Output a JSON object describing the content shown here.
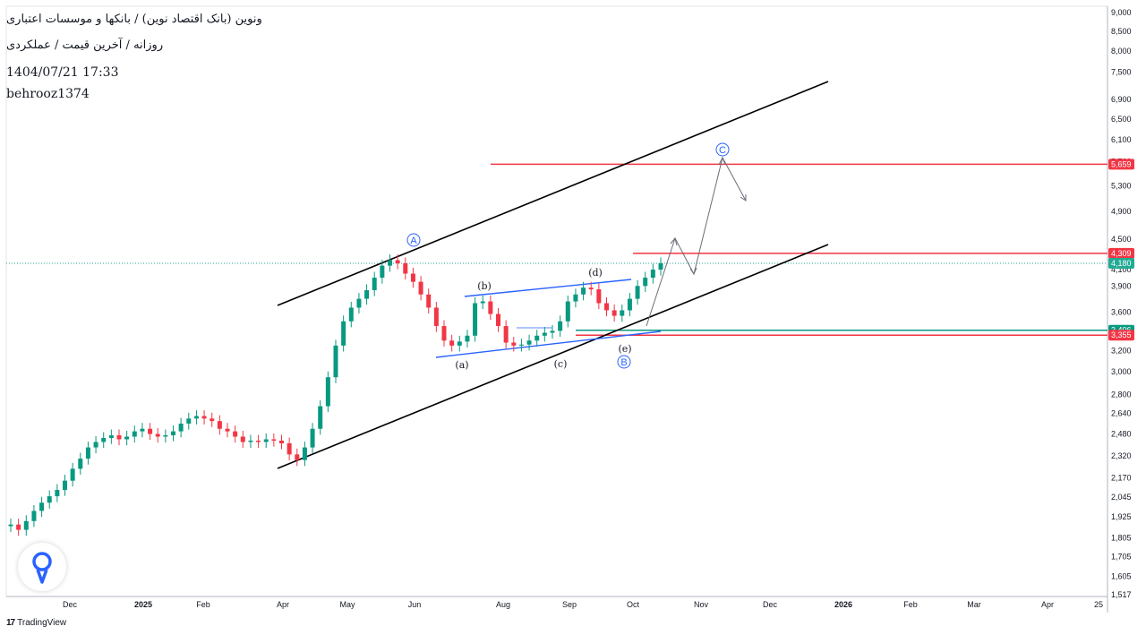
{
  "header": {
    "title": "ونوین (بانک اقتصاد نوین) / بانکها و موسسات اعتباری",
    "subtitle": "روزانه / آخرین قیمت / عملکردی",
    "datetime": "1404/07/21 17:33",
    "author": "behrooz1374"
  },
  "brand": {
    "name": "TradingView",
    "icon": "tradingview-logo-icon"
  },
  "logo_icon": "sahamyab-loop-icon",
  "chart_data": {
    "type": "candlestick",
    "y_scale": "log",
    "ylim": [
      1517,
      9000
    ],
    "y_ticks": [
      "9,000",
      "8,500",
      "8,000",
      "7,500",
      "6,900",
      "6,500",
      "6,100",
      "5,700",
      "5,300",
      "4,900",
      "4,500",
      "4,100",
      "3,900",
      "3,600",
      "3,200",
      "3,000",
      "2,800",
      "2,640",
      "2,480",
      "2,320",
      "2,170",
      "2,045",
      "1,925",
      "1,805",
      "1,705",
      "1,605",
      "1,517"
    ],
    "x_ticks": [
      {
        "label": "Dec",
        "bold": false
      },
      {
        "label": "2025",
        "bold": true
      },
      {
        "label": "Feb",
        "bold": false
      },
      {
        "label": "Apr",
        "bold": false
      },
      {
        "label": "May",
        "bold": false
      },
      {
        "label": "Jun",
        "bold": false
      },
      {
        "label": "Aug",
        "bold": false
      },
      {
        "label": "Sep",
        "bold": false
      },
      {
        "label": "Oct",
        "bold": false
      },
      {
        "label": "Nov",
        "bold": false
      },
      {
        "label": "Dec",
        "bold": false
      },
      {
        "label": "2026",
        "bold": true
      },
      {
        "label": "Feb",
        "bold": false
      },
      {
        "label": "Mar",
        "bold": false
      },
      {
        "label": "Apr",
        "bold": false
      },
      {
        "label": "25",
        "bold": false
      }
    ],
    "price_levels": [
      {
        "value": 5659,
        "label": "5,659",
        "color": "#f23645"
      },
      {
        "value": 4309,
        "label": "4,309",
        "color": "#f23645"
      },
      {
        "value": 4180,
        "label": "4,180",
        "color": "#22ab94",
        "current": true
      },
      {
        "value": 3406,
        "label": "3,406",
        "color": "#089981"
      },
      {
        "value": 3355,
        "label": "3,355",
        "color": "#f23645"
      }
    ],
    "wave_labels": [
      {
        "text": "A",
        "circled": true
      },
      {
        "text": "B",
        "circled": true
      },
      {
        "text": "C",
        "circled": true
      },
      {
        "text": "(a)",
        "circled": false
      },
      {
        "text": "(b)",
        "circled": false
      },
      {
        "text": "(c)",
        "circled": false
      },
      {
        "text": "(d)",
        "circled": false
      },
      {
        "text": "(e)",
        "circled": false
      }
    ],
    "series": [
      {
        "approx_closes": [
          1880,
          1850,
          1900,
          1960,
          2010,
          2050,
          2090,
          2150,
          2230,
          2300,
          2380,
          2420,
          2450,
          2470,
          2440,
          2460,
          2500,
          2520,
          2480,
          2460,
          2470,
          2500,
          2560,
          2600,
          2620,
          2600,
          2580,
          2520,
          2500,
          2460,
          2420,
          2430,
          2420,
          2440,
          2430,
          2410,
          2330,
          2290,
          2380,
          2520,
          2700,
          2950,
          3250,
          3500,
          3650,
          3750,
          3850,
          4000,
          4150,
          4220,
          4180,
          4050,
          3950,
          3800,
          3650,
          3450,
          3300,
          3250,
          3290,
          3350,
          3700,
          3720,
          3580,
          3450,
          3280,
          3250,
          3260,
          3300,
          3350,
          3380,
          3400,
          3500,
          3720,
          3800,
          3880,
          3860,
          3700,
          3620,
          3560,
          3620,
          3750,
          3900,
          4000,
          4100,
          4180
        ]
      }
    ]
  }
}
